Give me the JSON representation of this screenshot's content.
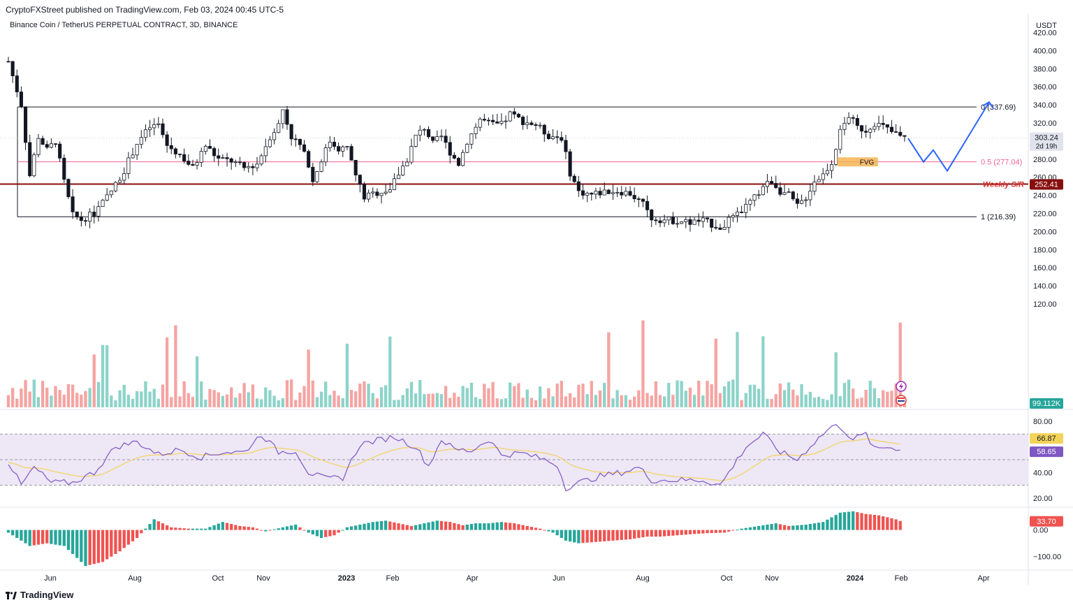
{
  "header": {
    "published": "CryptoFXStreet published on TradingView.com, Feb 03, 2024 00:45 UTC-5",
    "symbol": "Binance Coin / TetherUS PERPETUAL CONTRACT, 3D, BINANCE",
    "currency": "USDT"
  },
  "footer": {
    "brand": "TradingView"
  },
  "colors": {
    "up": "#26a69a",
    "down": "#ef5350",
    "volume_up": "#8dd3c9",
    "volume_down": "#f5a4a2",
    "rsi": "#7e57c2",
    "rsi_ma": "#f3d35a",
    "rsi_band": "#ede7f6",
    "projection": "#2962ff",
    "weekly_sr": "#880e0e",
    "fib_mid": "#f06292",
    "fvg": "#f6b454"
  },
  "chart_data": {
    "type": "candlestick",
    "title": "Binance Coin / TetherUS PERPETUAL CONTRACT, 3D, BINANCE",
    "x_ticks": [
      "Jun",
      "Aug",
      "Oct",
      "Nov",
      "2023",
      "Feb",
      "Apr",
      "Jun",
      "Aug",
      "Oct",
      "Nov",
      "2024",
      "Feb",
      "Apr"
    ],
    "y_ticks": [
      "420.00",
      "400.00",
      "380.00",
      "360.00",
      "340.00",
      "320.00",
      "280.00",
      "260.00",
      "240.00",
      "220.00",
      "200.00",
      "180.00",
      "160.00",
      "140.00",
      "120.00"
    ],
    "ylim": [
      110,
      425
    ],
    "price_keypoints": [
      [
        0,
        388
      ],
      [
        3,
        340
      ],
      [
        5,
        262
      ],
      [
        7,
        305
      ],
      [
        9,
        290
      ],
      [
        11,
        300
      ],
      [
        13,
        255
      ],
      [
        15,
        218
      ],
      [
        17,
        213
      ],
      [
        20,
        220
      ],
      [
        23,
        238
      ],
      [
        25,
        252
      ],
      [
        27,
        268
      ],
      [
        30,
        298
      ],
      [
        33,
        315
      ],
      [
        35,
        318
      ],
      [
        37,
        295
      ],
      [
        40,
        285
      ],
      [
        43,
        270
      ],
      [
        46,
        295
      ],
      [
        49,
        280
      ],
      [
        52,
        278
      ],
      [
        55,
        270
      ],
      [
        58,
        275
      ],
      [
        61,
        305
      ],
      [
        63,
        318
      ],
      [
        64,
        335
      ],
      [
        66,
        305
      ],
      [
        68,
        295
      ],
      [
        70,
        275
      ],
      [
        71,
        255
      ],
      [
        73,
        280
      ],
      [
        75,
        300
      ],
      [
        77,
        292
      ],
      [
        79,
        292
      ],
      [
        81,
        262
      ],
      [
        83,
        238
      ],
      [
        86,
        243
      ],
      [
        89,
        247
      ],
      [
        91,
        264
      ],
      [
        93,
        280
      ],
      [
        95,
        305
      ],
      [
        97,
        315
      ],
      [
        99,
        297
      ],
      [
        101,
        305
      ],
      [
        103,
        288
      ],
      [
        105,
        275
      ],
      [
        107,
        300
      ],
      [
        110,
        324
      ],
      [
        113,
        318
      ],
      [
        115,
        318
      ],
      [
        117,
        330
      ],
      [
        120,
        322
      ],
      [
        123,
        318
      ],
      [
        126,
        306
      ],
      [
        129,
        304
      ],
      [
        131,
        265
      ],
      [
        133,
        244
      ],
      [
        136,
        241
      ],
      [
        139,
        244
      ],
      [
        142,
        245
      ],
      [
        145,
        242
      ],
      [
        148,
        230
      ],
      [
        150,
        215
      ],
      [
        153,
        213
      ],
      [
        156,
        212
      ],
      [
        159,
        210
      ],
      [
        162,
        212
      ],
      [
        164,
        208
      ],
      [
        166,
        205
      ],
      [
        168,
        212
      ],
      [
        170,
        218
      ],
      [
        172,
        228
      ],
      [
        174,
        237
      ],
      [
        176,
        250
      ],
      [
        178,
        256
      ],
      [
        180,
        245
      ],
      [
        182,
        240
      ],
      [
        184,
        228
      ],
      [
        186,
        238
      ],
      [
        188,
        256
      ],
      [
        190,
        263
      ],
      [
        192,
        277
      ],
      [
        194,
        310
      ],
      [
        196,
        328
      ],
      [
        198,
        315
      ],
      [
        200,
        312
      ],
      [
        202,
        320
      ],
      [
        204,
        316
      ],
      [
        206,
        310
      ],
      [
        208,
        305
      ],
      [
        209,
        303.24
      ]
    ],
    "volume_ylim": [
      0,
      100
    ],
    "volume_last": "99.112K",
    "rsi": {
      "ylim": [
        15,
        85
      ],
      "ticks": [
        "80.00",
        "40.00",
        "20.00"
      ],
      "levels": [
        70,
        50,
        30
      ],
      "keypoints": [
        [
          0,
          48
        ],
        [
          3,
          30
        ],
        [
          6,
          44
        ],
        [
          10,
          32
        ],
        [
          15,
          32
        ],
        [
          20,
          40
        ],
        [
          25,
          60
        ],
        [
          30,
          64
        ],
        [
          35,
          54
        ],
        [
          40,
          58
        ],
        [
          45,
          52
        ],
        [
          50,
          56
        ],
        [
          55,
          56
        ],
        [
          59,
          70
        ],
        [
          63,
          56
        ],
        [
          67,
          57
        ],
        [
          70,
          40
        ],
        [
          74,
          35
        ],
        [
          78,
          36
        ],
        [
          82,
          62
        ],
        [
          86,
          65
        ],
        [
          90,
          68
        ],
        [
          95,
          60
        ],
        [
          98,
          45
        ],
        [
          101,
          66
        ],
        [
          104,
          58
        ],
        [
          108,
          57
        ],
        [
          112,
          66
        ],
        [
          115,
          54
        ],
        [
          120,
          55
        ],
        [
          125,
          50
        ],
        [
          128,
          46
        ],
        [
          130,
          28
        ],
        [
          133,
          32
        ],
        [
          138,
          37
        ],
        [
          143,
          40
        ],
        [
          147,
          44
        ],
        [
          150,
          34
        ],
        [
          155,
          34
        ],
        [
          158,
          34
        ],
        [
          162,
          34
        ],
        [
          166,
          30
        ],
        [
          168,
          40
        ],
        [
          172,
          60
        ],
        [
          176,
          70
        ],
        [
          180,
          56
        ],
        [
          184,
          50
        ],
        [
          188,
          64
        ],
        [
          192,
          76
        ],
        [
          194,
          76
        ],
        [
          197,
          66
        ],
        [
          200,
          70
        ],
        [
          202,
          58
        ],
        [
          205,
          60
        ],
        [
          208,
          58.65
        ]
      ],
      "ma_last": 66.87,
      "last": 58.65
    },
    "oscillator": {
      "ylim": [
        -140,
        75
      ],
      "ticks": [
        "0.00",
        "−100.00"
      ],
      "keypoints": [
        [
          0,
          -10
        ],
        [
          5,
          -60
        ],
        [
          9,
          -50
        ],
        [
          13,
          -60
        ],
        [
          18,
          -135
        ],
        [
          22,
          -120
        ],
        [
          26,
          -80
        ],
        [
          30,
          -30
        ],
        [
          34,
          40
        ],
        [
          38,
          10
        ],
        [
          42,
          5
        ],
        [
          46,
          5
        ],
        [
          50,
          30
        ],
        [
          54,
          15
        ],
        [
          57,
          10
        ],
        [
          60,
          -5
        ],
        [
          64,
          10
        ],
        [
          67,
          20
        ],
        [
          70,
          -10
        ],
        [
          73,
          -30
        ],
        [
          76,
          -20
        ],
        [
          79,
          10
        ],
        [
          82,
          20
        ],
        [
          85,
          30
        ],
        [
          88,
          35
        ],
        [
          91,
          25
        ],
        [
          94,
          15
        ],
        [
          97,
          25
        ],
        [
          100,
          35
        ],
        [
          103,
          30
        ],
        [
          106,
          18
        ],
        [
          109,
          25
        ],
        [
          112,
          25
        ],
        [
          115,
          30
        ],
        [
          118,
          25
        ],
        [
          121,
          15
        ],
        [
          124,
          5
        ],
        [
          127,
          -10
        ],
        [
          130,
          -40
        ],
        [
          133,
          -50
        ],
        [
          137,
          -45
        ],
        [
          141,
          -40
        ],
        [
          145,
          -35
        ],
        [
          149,
          -25
        ],
        [
          152,
          -25
        ],
        [
          156,
          -20
        ],
        [
          160,
          -15
        ],
        [
          163,
          -12
        ],
        [
          167,
          -10
        ],
        [
          171,
          5
        ],
        [
          175,
          15
        ],
        [
          179,
          25
        ],
        [
          182,
          15
        ],
        [
          186,
          20
        ],
        [
          190,
          30
        ],
        [
          194,
          65
        ],
        [
          197,
          70
        ],
        [
          200,
          60
        ],
        [
          203,
          55
        ],
        [
          207,
          40
        ],
        [
          208,
          33.7
        ]
      ],
      "last": "33.70"
    },
    "annotations": {
      "fib_0": "0 (337.69)",
      "fib_05": "0.5 (277.04)",
      "fib_1": "1 (216.39)",
      "weekly_sr_label": "Weekly S/R",
      "fvg": "FVG",
      "price_badge": "303.24",
      "countdown": "2d 19h",
      "weekly_sr_badge": "252.41",
      "fib_0_value": 337.69,
      "fib_05_value": 277.04,
      "fib_1_value": 216.39,
      "weekly_sr_value": 252.41,
      "last_close": 303.24
    },
    "projection_path": [
      [
        303,
        303
      ],
      [
        314,
        277
      ],
      [
        321,
        290
      ],
      [
        331,
        267
      ],
      [
        361,
        343
      ]
    ]
  }
}
